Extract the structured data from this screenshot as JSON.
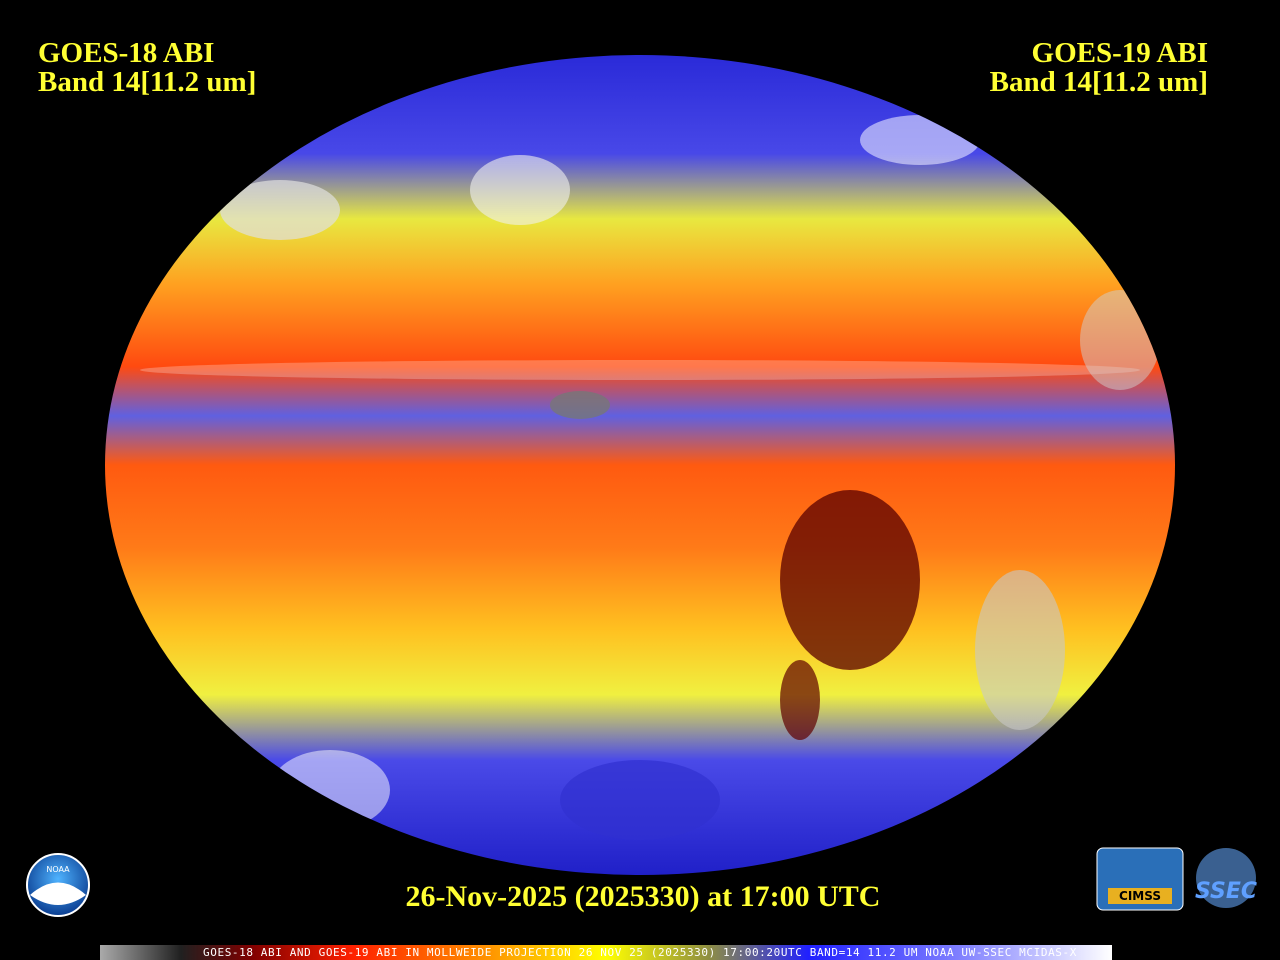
{
  "header_left": {
    "line1": "GOES-18 ABI",
    "line2": "Band 14[11.2 um]"
  },
  "header_right": {
    "line1": "GOES-19 ABI",
    "line2": "Band 14[11.2 um]"
  },
  "timestamp": "26-Nov-2025 (2025330) at 17:00 UTC",
  "logos": {
    "noaa": "NOAA",
    "cimss": "CIMSS",
    "ssec": "SSEC"
  },
  "footer": "GOES-18 ABI AND GOES-19 ABI IN MOLLWEIDE PROJECTION 26 NOV 25 (2025330) 17:00:20UTC BAND=14 11.2 UM NOAA UW-SSEC MCIDAS-X"
}
